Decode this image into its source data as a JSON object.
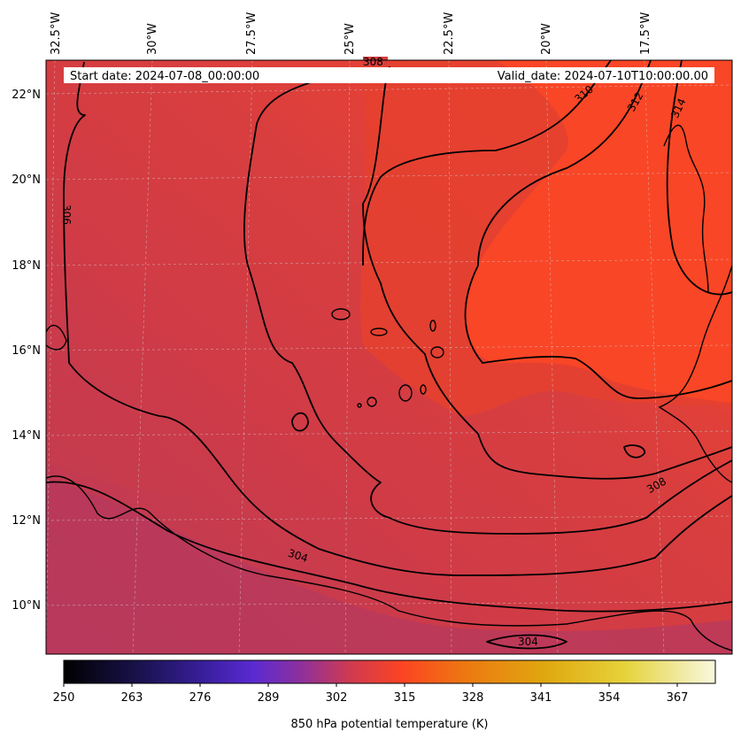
{
  "map": {
    "start_label": "Start date: 2024-07-08_00:00:00",
    "valid_label": "Valid_date: 2024-07-10T10:00:00.00",
    "lon_labels": [
      "32.5°W",
      "30°W",
      "27.5°W",
      "25°W",
      "22.5°W",
      "20°W",
      "17.5°W"
    ],
    "lat_labels": [
      "22°N",
      "20°N",
      "18°N",
      "16°N",
      "14°N",
      "12°N",
      "10°N"
    ],
    "contour_labels": [
      "306",
      "308",
      "310",
      "312",
      "314",
      "304",
      "308",
      "304"
    ]
  },
  "colorbar": {
    "ticks": [
      "250",
      "263",
      "276",
      "289",
      "302",
      "315",
      "328",
      "341",
      "354",
      "367"
    ],
    "label": "850 hPa potential temperature (K)"
  },
  "colors": {
    "field_cool": "#b83a5a",
    "field_mid": "#d63e40",
    "field_warm": "#fb4726"
  }
}
